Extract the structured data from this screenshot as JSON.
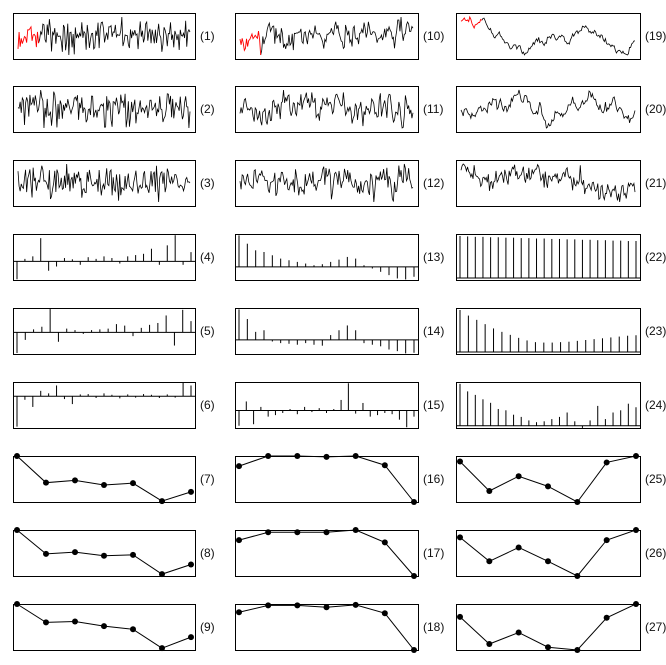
{
  "figure": {
    "columns": 3,
    "rows": 9,
    "colors": {
      "line": "#000000",
      "highlight": "#ff0000",
      "frame": "#000000"
    }
  },
  "chart_data": [
    {
      "label": "(1)",
      "type": "line",
      "kind": "white-noise",
      "highlight_start": true
    },
    {
      "label": "(2)",
      "type": "line",
      "kind": "white-noise"
    },
    {
      "label": "(3)",
      "type": "line",
      "kind": "white-noise"
    },
    {
      "label": "(4)",
      "type": "bar",
      "kind": "acf-spikes",
      "values": [
        -0.42,
        0.06,
        0.12,
        0.55,
        -0.22,
        -0.12,
        0.08,
        0.05,
        -0.08,
        0.1,
        0.06,
        0.12,
        0.08,
        -0.05,
        0.12,
        0.15,
        0.18,
        0.3,
        -0.08,
        0.38,
        0.62,
        -0.08,
        0.22
      ]
    },
    {
      "label": "(5)",
      "type": "bar",
      "kind": "acf-spikes",
      "values": [
        -0.55,
        -0.2,
        0.08,
        0.15,
        0.62,
        -0.25,
        0.1,
        0.06,
        -0.04,
        0.06,
        0.08,
        0.1,
        0.22,
        0.18,
        -0.1,
        0.12,
        0.2,
        0.25,
        0.45,
        -0.35,
        0.6,
        0.3
      ]
    },
    {
      "label": "(6)",
      "type": "bar",
      "kind": "acf-spikes",
      "values": [
        -0.85,
        -0.1,
        -0.3,
        0.15,
        0.08,
        0.3,
        -0.08,
        -0.22,
        0.05,
        0.06,
        -0.05,
        0.08,
        0.04,
        -0.06,
        0.05,
        -0.04,
        0.06,
        0.04,
        -0.05,
        0.05,
        -0.04,
        0.38,
        0.3
      ]
    },
    {
      "label": "(7)",
      "type": "line",
      "kind": "points",
      "x": [
        1,
        2,
        3,
        4,
        5,
        6,
        7
      ],
      "y": [
        1.0,
        0.42,
        0.47,
        0.37,
        0.41,
        0.02,
        0.22
      ]
    },
    {
      "label": "(8)",
      "type": "line",
      "kind": "points",
      "x": [
        1,
        2,
        3,
        4,
        5,
        6,
        7
      ],
      "y": [
        1.0,
        0.48,
        0.52,
        0.44,
        0.46,
        0.04,
        0.25
      ]
    },
    {
      "label": "(9)",
      "type": "line",
      "kind": "points",
      "x": [
        1,
        2,
        3,
        4,
        5,
        6,
        7
      ],
      "y": [
        1.0,
        0.6,
        0.62,
        0.52,
        0.45,
        0.04,
        0.28
      ]
    },
    {
      "label": "(10)",
      "type": "line",
      "kind": "ar1-moderate",
      "highlight_start": true
    },
    {
      "label": "(11)",
      "type": "line",
      "kind": "ar1-moderate"
    },
    {
      "label": "(12)",
      "type": "line",
      "kind": "ar1-weak"
    },
    {
      "label": "(13)",
      "type": "bar",
      "kind": "acf-spikes",
      "values": [
        0.95,
        0.7,
        0.5,
        0.45,
        0.35,
        0.25,
        0.2,
        0.15,
        0.1,
        0.05,
        0.08,
        0.15,
        0.22,
        0.3,
        0.25,
        0.05,
        -0.05,
        -0.15,
        -0.25,
        -0.35,
        -0.38,
        -0.3
      ]
    },
    {
      "label": "(14)",
      "type": "bar",
      "kind": "acf-spikes",
      "values": [
        0.95,
        0.65,
        0.25,
        0.3,
        -0.05,
        -0.1,
        -0.12,
        -0.15,
        -0.1,
        -0.15,
        -0.18,
        0.15,
        0.3,
        0.45,
        0.3,
        -0.1,
        -0.15,
        -0.2,
        -0.3,
        -0.35,
        -0.42,
        -0.4
      ]
    },
    {
      "label": "(15)",
      "type": "bar",
      "kind": "acf-spikes",
      "values": [
        -0.5,
        0.3,
        -0.45,
        0.12,
        -0.2,
        -0.15,
        -0.08,
        0.05,
        -0.12,
        0.12,
        -0.05,
        0.08,
        -0.08,
        0.05,
        0.35,
        0.9,
        -0.1,
        0.25,
        -0.2,
        -0.15,
        -0.08,
        -0.12,
        -0.3,
        -0.55,
        -0.2
      ]
    },
    {
      "label": "(16)",
      "type": "line",
      "kind": "points",
      "x": [
        1,
        2,
        3,
        4,
        5,
        6,
        7
      ],
      "y": [
        0.78,
        1.0,
        1.0,
        0.98,
        1.0,
        0.8,
        0.0
      ]
    },
    {
      "label": "(17)",
      "type": "line",
      "kind": "points",
      "x": [
        1,
        2,
        3,
        4,
        5,
        6,
        7
      ],
      "y": [
        0.78,
        0.95,
        0.95,
        0.95,
        1.0,
        0.73,
        0.0
      ]
    },
    {
      "label": "(18)",
      "type": "line",
      "kind": "points",
      "x": [
        1,
        2,
        3,
        4,
        5,
        6,
        7
      ],
      "y": [
        0.82,
        0.97,
        0.97,
        0.93,
        0.98,
        0.8,
        0.0
      ]
    },
    {
      "label": "(19)",
      "type": "line",
      "kind": "random-walk",
      "highlight_start": true
    },
    {
      "label": "(20)",
      "type": "line",
      "kind": "ar1-strong"
    },
    {
      "label": "(21)",
      "type": "line",
      "kind": "ar1-noisy"
    },
    {
      "label": "(22)",
      "type": "bar",
      "kind": "acf-spikes",
      "values": [
        1.0,
        0.99,
        0.98,
        0.98,
        0.97,
        0.97,
        0.96,
        0.96,
        0.95,
        0.95,
        0.94,
        0.94,
        0.93,
        0.93,
        0.92,
        0.92,
        0.91,
        0.91,
        0.9,
        0.9,
        0.89,
        0.89,
        0.88,
        0.88
      ]
    },
    {
      "label": "(23)",
      "type": "bar",
      "kind": "acf-spikes",
      "values": [
        0.98,
        0.85,
        0.75,
        0.65,
        0.55,
        0.47,
        0.4,
        0.33,
        0.27,
        0.23,
        0.22,
        0.22,
        0.23,
        0.24,
        0.26,
        0.28,
        0.3,
        0.32,
        0.34,
        0.36,
        0.38,
        0.39
      ]
    },
    {
      "label": "(24)",
      "type": "bar",
      "kind": "acf-spikes",
      "values": [
        0.95,
        0.78,
        0.7,
        0.6,
        0.52,
        0.38,
        0.35,
        0.25,
        0.2,
        0.12,
        0.08,
        0.1,
        0.15,
        0.2,
        0.3,
        0.1,
        -0.05,
        0.12,
        0.45,
        0.15,
        0.3,
        0.35,
        0.5,
        0.42
      ]
    },
    {
      "label": "(25)",
      "type": "line",
      "kind": "points",
      "x": [
        1,
        2,
        3,
        4,
        5,
        6,
        7
      ],
      "y": [
        0.88,
        0.24,
        0.56,
        0.34,
        0.0,
        0.86,
        1.0
      ]
    },
    {
      "label": "(26)",
      "type": "line",
      "kind": "points",
      "x": [
        1,
        2,
        3,
        4,
        5,
        6,
        7
      ],
      "y": [
        0.84,
        0.32,
        0.62,
        0.32,
        0.0,
        0.78,
        1.0
      ]
    },
    {
      "label": "(27)",
      "type": "line",
      "kind": "points",
      "x": [
        1,
        2,
        3,
        4,
        5,
        6,
        7
      ],
      "y": [
        0.72,
        0.13,
        0.38,
        0.06,
        0.0,
        0.7,
        1.0
      ]
    }
  ]
}
